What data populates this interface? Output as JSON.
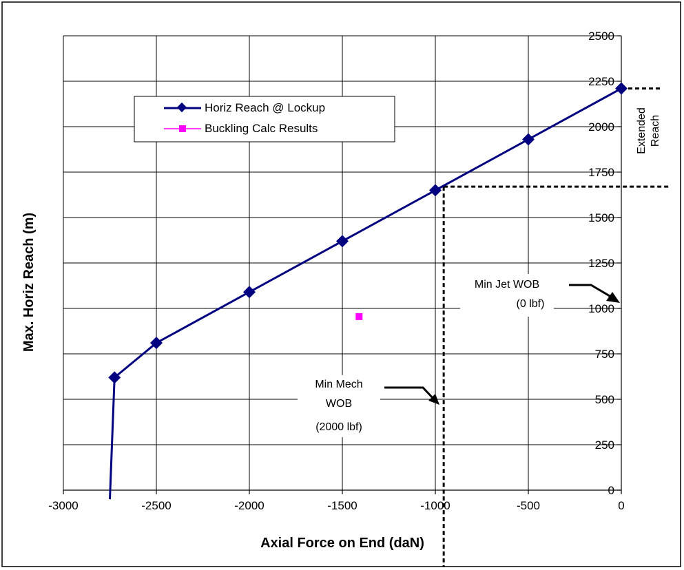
{
  "chart_data": {
    "type": "line",
    "title": "",
    "xlabel": "Axial Force on End (daN)",
    "ylabel": "Max. Horiz Reach (m)",
    "xlim": [
      -3000,
      0
    ],
    "ylim": [
      0,
      2500
    ],
    "x_ticks": [
      -3000,
      -2500,
      -2000,
      -1500,
      -1000,
      -500,
      0
    ],
    "y_ticks": [
      0,
      250,
      500,
      750,
      1000,
      1250,
      1500,
      1750,
      2000,
      2250,
      2500
    ],
    "grid": true,
    "y_axis_side": "right",
    "legend_position": "top-left",
    "series": [
      {
        "name": "Horiz Reach @ Lockup",
        "color": "#000080",
        "marker": "diamond",
        "line": true,
        "points": [
          [
            -2750,
            -50
          ],
          [
            -2725,
            620
          ],
          [
            -2500,
            810
          ],
          [
            -2000,
            1090
          ],
          [
            -1500,
            1370
          ],
          [
            -1000,
            1650
          ],
          [
            -500,
            1930
          ],
          [
            0,
            2210
          ]
        ],
        "marker_points": [
          [
            -2725,
            620
          ],
          [
            -2500,
            810
          ],
          [
            -2000,
            1090
          ],
          [
            -1500,
            1370
          ],
          [
            -1000,
            1650
          ],
          [
            -500,
            1930
          ],
          [
            0,
            2210
          ]
        ]
      },
      {
        "name": "Buckling Calc Results",
        "color": "#ff00ff",
        "marker": "square",
        "line": false,
        "points": [
          [
            -1410,
            955
          ]
        ]
      }
    ],
    "annotations": {
      "extended_reach": {
        "line1": "Extended",
        "line2": "Reach"
      },
      "min_jet_wob": {
        "line1": "Min Jet WOB",
        "line2": "(0 lbf)"
      },
      "min_mech_wob": {
        "line1": "Min Mech",
        "line2": "WOB",
        "line3": "(2000 lbf)"
      }
    },
    "guide_lines": {
      "extended_reach_level": 2210,
      "lockup_level": 1670,
      "min_mech_wob_force": -955
    }
  }
}
